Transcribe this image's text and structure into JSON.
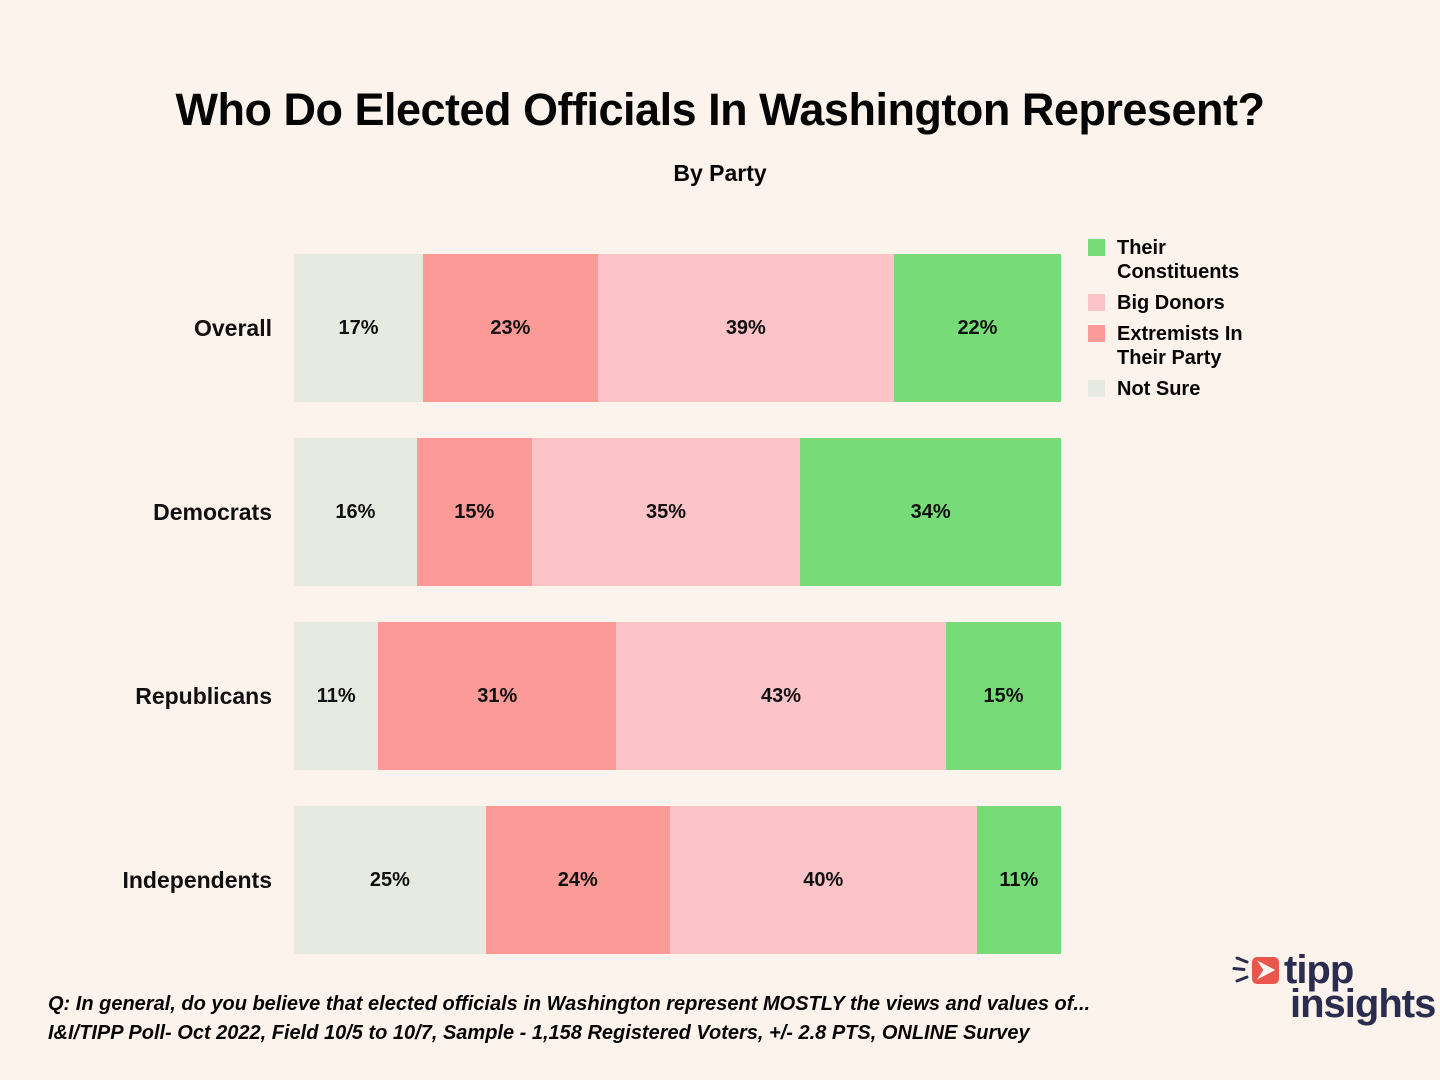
{
  "header": {
    "title": "Who Do Elected Officials In Washington Represent?",
    "subtitle": "By Party"
  },
  "chart_data": {
    "type": "bar",
    "orientation": "horizontal",
    "stacked": true,
    "title": "Who Do Elected Officials In Washington Represent?",
    "subtitle": "By Party",
    "value_format": "percent",
    "categories": [
      "Overall",
      "Democrats",
      "Republicans",
      "Independents"
    ],
    "series": [
      {
        "name": "Not Sure",
        "color": "#E7EAE1",
        "values": [
          17,
          16,
          11,
          25
        ]
      },
      {
        "name": "Extremists In Their Party",
        "color": "#FB9A96",
        "values": [
          23,
          15,
          31,
          24
        ]
      },
      {
        "name": "Big Donors",
        "color": "#FCC3C8",
        "values": [
          39,
          35,
          43,
          40
        ]
      },
      {
        "name": "Their Constituents",
        "color": "#77DC78",
        "values": [
          22,
          34,
          15,
          11
        ]
      }
    ],
    "legend": {
      "position": "top-right",
      "items": [
        {
          "label": "Their Constituents",
          "color": "#77DC78"
        },
        {
          "label": "Big Donors",
          "color": "#FCC3C8"
        },
        {
          "label": "Extremists In Their Party",
          "color": "#FB9A96"
        },
        {
          "label": "Not Sure",
          "color": "#E7EAE1"
        }
      ]
    }
  },
  "footer": {
    "line1": "Q: In general, do you believe that elected officials in Washington represent MOSTLY the views and values of...",
    "line2": "I&I/TIPP Poll- Oct 2022, Field 10/5 to 10/7, Sample - 1,158 Registered Voters, +/- 2.8 PTS, ONLINE Survey"
  },
  "logo": {
    "text_top": "tipp",
    "text_bottom": "insights",
    "accent_color": "#E9564B",
    "navy_color": "#2B2D4F"
  },
  "page": {
    "background_color": "#FDF3ED"
  }
}
